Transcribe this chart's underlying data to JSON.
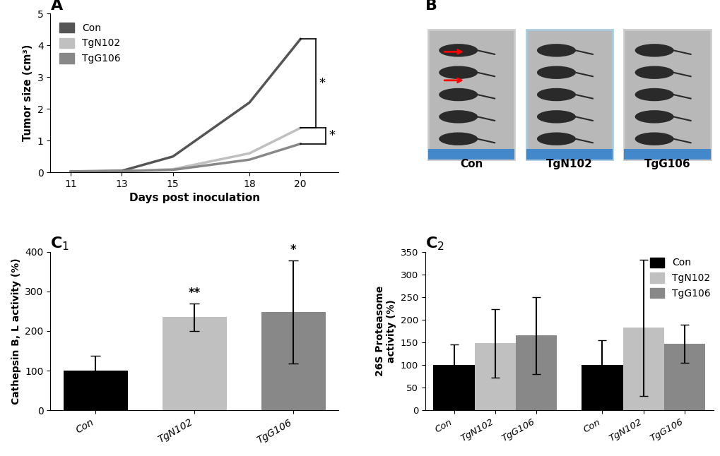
{
  "panel_A": {
    "days": [
      11,
      13,
      15,
      18,
      20
    ],
    "con": [
      0.03,
      0.05,
      0.5,
      2.2,
      4.2
    ],
    "tgn102": [
      0.02,
      0.03,
      0.1,
      0.6,
      1.4
    ],
    "tgg106": [
      0.02,
      0.04,
      0.08,
      0.4,
      0.9
    ],
    "con_color": "#555555",
    "tgn102_color": "#c0c0c0",
    "tgg106_color": "#888888",
    "ylabel": "Tumor size (cm³)",
    "xlabel": "Days post inoculation",
    "ylim": [
      0,
      5
    ],
    "yticks": [
      0,
      1,
      2,
      3,
      4,
      5
    ],
    "xticks": [
      11,
      13,
      15,
      18,
      20
    ],
    "legend_labels": [
      "Con",
      "TgN102",
      "TgG106"
    ],
    "title": "A"
  },
  "panel_C1": {
    "categories": [
      "Con",
      "TgN102",
      "TgG106"
    ],
    "values": [
      100,
      235,
      248
    ],
    "errors": [
      38,
      35,
      130
    ],
    "colors": [
      "#000000",
      "#c0c0c0",
      "#888888"
    ],
    "ylabel": "Cathepsin B, L activity (%)",
    "ylim": [
      0,
      400
    ],
    "yticks": [
      0,
      100,
      200,
      300,
      400
    ],
    "annotations": [
      "",
      "**",
      "*"
    ],
    "title": "C$_1$"
  },
  "panel_C2": {
    "categories_group1": [
      "Con",
      "TgN102",
      "TgG106"
    ],
    "categories_group2": [
      "Con",
      "TgN102",
      "TgG106"
    ],
    "values_group1": [
      100,
      148,
      165
    ],
    "values_group2": [
      100,
      182,
      147
    ],
    "errors_group1": [
      45,
      75,
      85
    ],
    "errors_group2": [
      55,
      150,
      42
    ],
    "colors": [
      "#000000",
      "#c0c0c0",
      "#888888"
    ],
    "ylabel": "26S Proteasome\nactivity (%)",
    "ylim": [
      0,
      350
    ],
    "yticks": [
      0,
      50,
      100,
      150,
      200,
      250,
      300,
      350
    ],
    "legend_labels": [
      "Con",
      "TgN102",
      "TgG106"
    ],
    "title": "C$_2$"
  },
  "panel_B": {
    "labels": [
      "Con",
      "TgN102",
      "TgG106"
    ],
    "title": "B",
    "photo_bg": "#b8b8b8",
    "photo_dark": "#2a2a2a",
    "ruler_color": "#4488cc"
  }
}
